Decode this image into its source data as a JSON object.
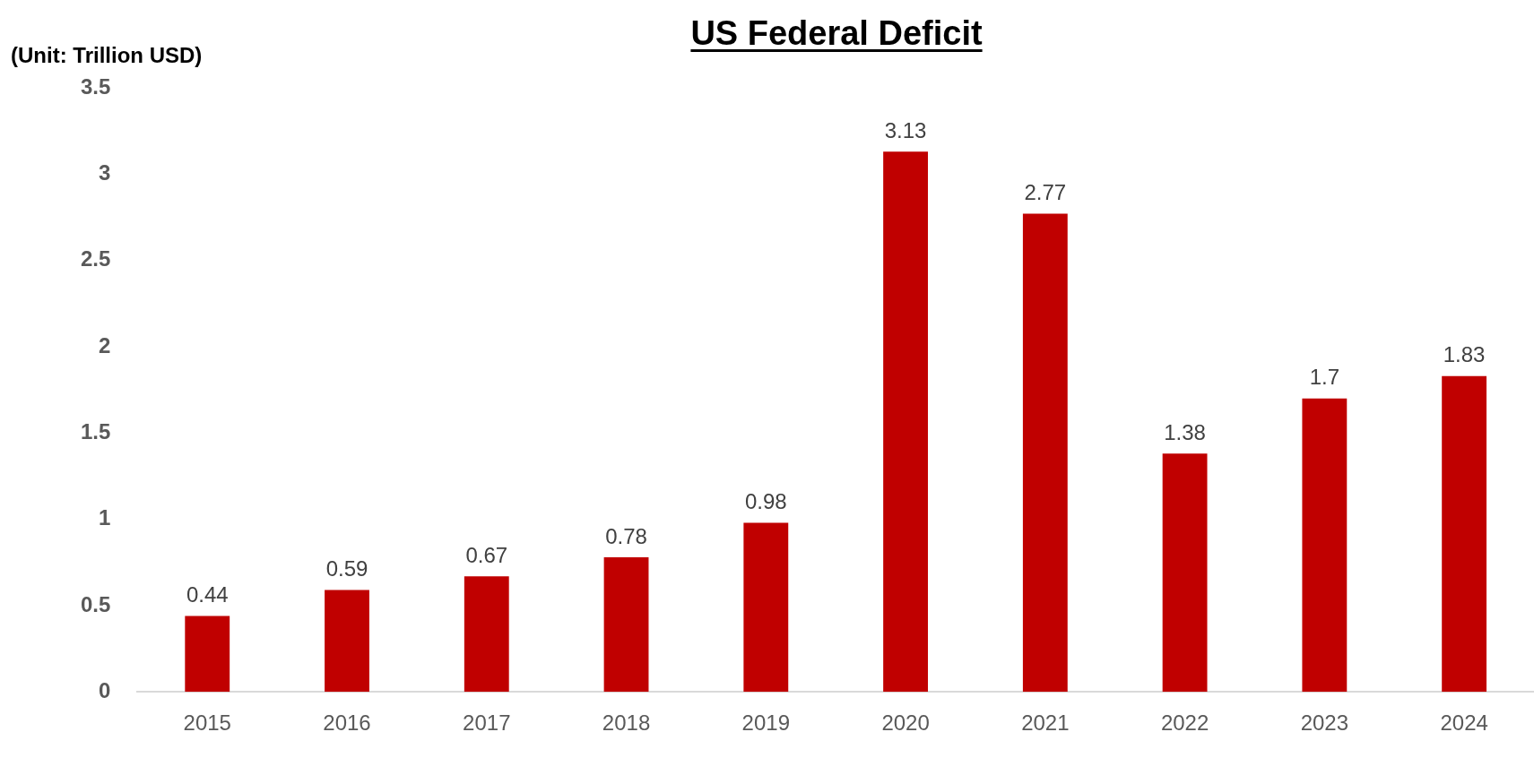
{
  "chart_data": {
    "type": "bar",
    "title": "US Federal Deficit",
    "ylabel": "(Unit: Trillion USD)",
    "categories": [
      "2015",
      "2016",
      "2017",
      "2018",
      "2019",
      "2020",
      "2021",
      "2022",
      "2023",
      "2024"
    ],
    "values": [
      0.44,
      0.59,
      0.67,
      0.78,
      0.98,
      3.13,
      2.77,
      1.38,
      1.7,
      1.83
    ],
    "color": "#c00000",
    "ylim": [
      0,
      3.5
    ],
    "yticks": [
      0,
      0.5,
      1,
      1.5,
      2,
      2.5,
      3,
      3.5
    ],
    "grid": false,
    "legend": false,
    "data_labels": true
  }
}
